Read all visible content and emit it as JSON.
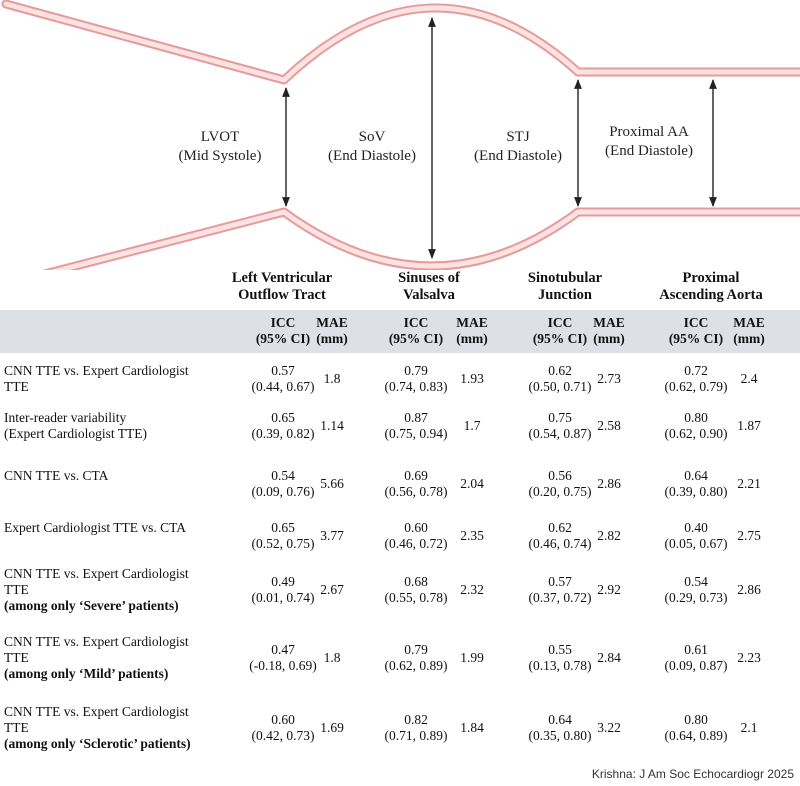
{
  "diagram": {
    "segments": [
      {
        "name": "LVOT",
        "phase": "(Mid Systole)"
      },
      {
        "name": "SoV",
        "phase": "(End Diastole)"
      },
      {
        "name": "STJ",
        "phase": "(End Diastole)"
      },
      {
        "name": "Proximal AA",
        "phase": "(End Diastole)"
      }
    ],
    "colors": {
      "vessel_wall": "#f2c2c2",
      "vessel_edge": "#e89a9a",
      "arrow": "#222222"
    }
  },
  "table": {
    "groups": [
      {
        "line1": "Left Ventricular",
        "line2": "Outflow Tract"
      },
      {
        "line1": "Sinuses of",
        "line2": "Valsalva"
      },
      {
        "line1": "Sinotubular",
        "line2": "Junction"
      },
      {
        "line1": "Proximal",
        "line2": "Ascending Aorta"
      }
    ],
    "sub_icc": {
      "l1": "ICC",
      "l2": "(95% CI)"
    },
    "sub_mae": {
      "l1": "MAE",
      "l2": "(mm)"
    },
    "header_bg": "#dde1e6",
    "rows": [
      {
        "label": [
          "CNN TTE vs. Expert Cardiologist",
          "TTE"
        ],
        "bold": "",
        "cells": [
          [
            "0.57",
            "(0.44, 0.67)",
            "1.8"
          ],
          [
            "0.79",
            "(0.74, 0.83)",
            "1.93"
          ],
          [
            "0.62",
            "(0.50, 0.71)",
            "2.73"
          ],
          [
            "0.72",
            "(0.62, 0.79)",
            "2.4"
          ]
        ]
      },
      {
        "label": [
          "Inter-reader variability",
          "(Expert Cardiologist TTE)"
        ],
        "bold": "",
        "cells": [
          [
            "0.65",
            "(0.39, 0.82)",
            "1.14"
          ],
          [
            "0.87",
            "(0.75, 0.94)",
            "1.7"
          ],
          [
            "0.75",
            "(0.54, 0.87)",
            "2.58"
          ],
          [
            "0.80",
            "(0.62, 0.90)",
            "1.87"
          ]
        ]
      },
      {
        "label": [
          "CNN TTE vs. CTA"
        ],
        "bold": "",
        "cells": [
          [
            "0.54",
            "(0.09, 0.76)",
            "5.66"
          ],
          [
            "0.69",
            "(0.56, 0.78)",
            "2.04"
          ],
          [
            "0.56",
            "(0.20, 0.75)",
            "2.86"
          ],
          [
            "0.64",
            "(0.39, 0.80)",
            "2.21"
          ]
        ]
      },
      {
        "label": [
          "Expert Cardiologist TTE vs. CTA"
        ],
        "bold": "",
        "cells": [
          [
            "0.65",
            "(0.52, 0.75)",
            "3.77"
          ],
          [
            "0.60",
            "(0.46, 0.72)",
            "2.35"
          ],
          [
            "0.62",
            "(0.46, 0.74)",
            "2.82"
          ],
          [
            "0.40",
            "(0.05, 0.67)",
            "2.75"
          ]
        ]
      },
      {
        "label": [
          "CNN TTE vs. Expert Cardiologist",
          "TTE"
        ],
        "bold": "(among only ‘Severe’ patients)",
        "cells": [
          [
            "0.49",
            "(0.01, 0.74)",
            "2.67"
          ],
          [
            "0.68",
            "(0.55, 0.78)",
            "2.32"
          ],
          [
            "0.57",
            "(0.37, 0.72)",
            "2.92"
          ],
          [
            "0.54",
            "(0.29, 0.73)",
            "2.86"
          ]
        ]
      },
      {
        "label": [
          "CNN TTE vs. Expert Cardiologist",
          "TTE"
        ],
        "bold": "(among only ‘Mild’ patients)",
        "cells": [
          [
            "0.47",
            "(-0.18, 0.69)",
            "1.8"
          ],
          [
            "0.79",
            "(0.62, 0.89)",
            "1.99"
          ],
          [
            "0.55",
            "(0.13, 0.78)",
            "2.84"
          ],
          [
            "0.61",
            "(0.09, 0.87)",
            "2.23"
          ]
        ]
      },
      {
        "label": [
          "CNN TTE vs. Expert Cardiologist",
          "TTE"
        ],
        "bold": "(among only ‘Sclerotic’ patients)",
        "cells": [
          [
            "0.60",
            "(0.42, 0.73)",
            "1.69"
          ],
          [
            "0.82",
            "(0.71, 0.89)",
            "1.84"
          ],
          [
            "0.64",
            "(0.35, 0.80)",
            "3.22"
          ],
          [
            "0.80",
            "(0.64, 0.89)",
            "2.1"
          ]
        ]
      }
    ]
  },
  "credit": "Krishna: J Am Soc Echocardiogr 2025"
}
